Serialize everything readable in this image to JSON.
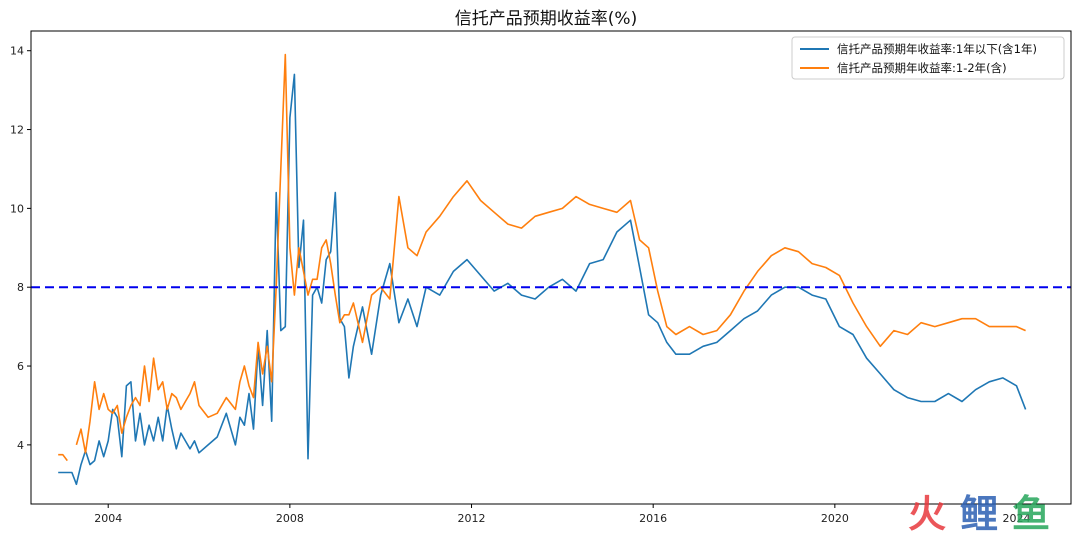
{
  "title": "信托产品预期收益率(%)",
  "watermark_text": "火鲤鱼",
  "colors": {
    "series_1": "#1f77b4",
    "series_2": "#ff7f0e",
    "reference_line": "#0000ee",
    "watermark_red": "#e8383d",
    "watermark_blue": "#2c5fb3",
    "watermark_green": "#26a65b"
  },
  "chart_data": {
    "type": "line",
    "title": "信托产品预期收益率(%)",
    "xlabel": "",
    "ylabel": "",
    "xlim": [
      2002.3,
      2025.2
    ],
    "ylim": [
      2.5,
      14.5
    ],
    "x_ticks": [
      2004,
      2008,
      2012,
      2016,
      2020,
      2024
    ],
    "x_tick_labels": [
      "2004",
      "2008",
      "2012",
      "2016",
      "2020",
      "2024"
    ],
    "y_ticks": [
      4,
      6,
      8,
      10,
      12,
      14
    ],
    "y_tick_labels": [
      "4",
      "6",
      "8",
      "10",
      "12",
      "14"
    ],
    "grid": false,
    "legend_position": "top-right",
    "reference_lines": [
      {
        "axis": "y",
        "value": 8,
        "style": "dashed"
      }
    ],
    "series": [
      {
        "name": "信托产品预期年收益率:1年以下(含1年)",
        "x": [
          2002.9,
          2003.0,
          2003.1,
          2003.2,
          2003.3,
          2003.4,
          2003.5,
          2003.6,
          2003.7,
          2003.8,
          2003.9,
          2004.0,
          2004.1,
          2004.2,
          2004.3,
          2004.4,
          2004.5,
          2004.6,
          2004.7,
          2004.8,
          2004.9,
          2005.0,
          2005.1,
          2005.2,
          2005.3,
          2005.4,
          2005.5,
          2005.6,
          2005.7,
          2005.8,
          2005.9,
          2006.0,
          2006.2,
          2006.4,
          2006.6,
          2006.8,
          2006.9,
          2007.0,
          2007.1,
          2007.2,
          2007.3,
          2007.4,
          2007.5,
          2007.6,
          2007.7,
          2007.8,
          2007.9,
          2008.0,
          2008.1,
          2008.2,
          2008.3,
          2008.4,
          2008.5,
          2008.6,
          2008.7,
          2008.8,
          2008.9,
          2009.0,
          2009.1,
          2009.2,
          2009.3,
          2009.4,
          2009.6,
          2009.8,
          2010.0,
          2010.2,
          2010.4,
          2010.6,
          2010.8,
          2011.0,
          2011.3,
          2011.6,
          2011.9,
          2012.2,
          2012.5,
          2012.8,
          2013.1,
          2013.4,
          2013.7,
          2014.0,
          2014.3,
          2014.6,
          2014.9,
          2015.2,
          2015.5,
          2015.7,
          2015.9,
          2016.1,
          2016.3,
          2016.5,
          2016.8,
          2017.1,
          2017.4,
          2017.7,
          2018.0,
          2018.3,
          2018.6,
          2018.9,
          2019.2,
          2019.5,
          2019.8,
          2020.1,
          2020.4,
          2020.7,
          2021.0,
          2021.3,
          2021.6,
          2021.9,
          2022.2,
          2022.5,
          2022.8,
          2023.1,
          2023.4,
          2023.7,
          2024.0,
          2024.2
        ],
        "values": [
          3.3,
          3.3,
          3.3,
          3.3,
          3.0,
          3.5,
          3.85,
          3.5,
          3.6,
          4.1,
          3.7,
          4.1,
          4.9,
          4.7,
          3.7,
          5.5,
          5.6,
          4.1,
          4.8,
          4.0,
          4.5,
          4.1,
          4.7,
          4.1,
          5.0,
          4.4,
          3.9,
          4.3,
          4.1,
          3.9,
          4.1,
          3.8,
          4.0,
          4.2,
          4.8,
          4.0,
          4.7,
          4.5,
          5.3,
          4.4,
          6.5,
          5.0,
          6.9,
          4.6,
          10.4,
          6.9,
          7.0,
          12.3,
          13.4,
          8.5,
          9.7,
          3.65,
          7.8,
          8.0,
          7.6,
          8.7,
          8.9,
          10.4,
          7.2,
          7.0,
          5.7,
          6.5,
          7.5,
          6.3,
          7.8,
          8.6,
          7.1,
          7.7,
          7.0,
          8.0,
          7.8,
          8.4,
          8.7,
          8.3,
          7.9,
          8.1,
          7.8,
          7.7,
          8.0,
          8.2,
          7.9,
          8.6,
          8.7,
          9.4,
          9.7,
          8.5,
          7.3,
          7.1,
          6.6,
          6.3,
          6.3,
          6.5,
          6.6,
          6.9,
          7.2,
          7.4,
          7.8,
          8.0,
          8.0,
          7.8,
          7.7,
          7.0,
          6.8,
          6.2,
          5.8,
          5.4,
          5.2,
          5.1,
          5.1,
          5.3,
          5.1,
          5.4,
          5.6,
          5.7,
          5.5,
          4.9
        ]
      },
      {
        "name": "信托产品预期年收益率:1-2年(含)",
        "x": [
          2002.9,
          2003.0,
          2003.1,
          2003.2,
          2003.3,
          2003.4,
          2003.5,
          2003.6,
          2003.7,
          2003.8,
          2003.9,
          2004.0,
          2004.1,
          2004.2,
          2004.3,
          2004.4,
          2004.5,
          2004.6,
          2004.7,
          2004.8,
          2004.9,
          2005.0,
          2005.1,
          2005.2,
          2005.3,
          2005.4,
          2005.5,
          2005.6,
          2005.7,
          2005.8,
          2005.9,
          2006.0,
          2006.2,
          2006.4,
          2006.6,
          2006.8,
          2006.9,
          2007.0,
          2007.1,
          2007.2,
          2007.3,
          2007.4,
          2007.5,
          2007.6,
          2007.7,
          2007.8,
          2007.9,
          2008.0,
          2008.1,
          2008.2,
          2008.3,
          2008.4,
          2008.5,
          2008.6,
          2008.7,
          2008.8,
          2008.9,
          2009.0,
          2009.1,
          2009.2,
          2009.3,
          2009.4,
          2009.6,
          2009.8,
          2010.0,
          2010.2,
          2010.4,
          2010.6,
          2010.8,
          2011.0,
          2011.3,
          2011.6,
          2011.9,
          2012.2,
          2012.5,
          2012.8,
          2013.1,
          2013.4,
          2013.7,
          2014.0,
          2014.3,
          2014.6,
          2014.9,
          2015.2,
          2015.5,
          2015.7,
          2015.9,
          2016.1,
          2016.3,
          2016.5,
          2016.8,
          2017.1,
          2017.4,
          2017.7,
          2018.0,
          2018.3,
          2018.6,
          2018.9,
          2019.2,
          2019.5,
          2019.8,
          2020.1,
          2020.4,
          2020.7,
          2021.0,
          2021.3,
          2021.6,
          2021.9,
          2022.2,
          2022.5,
          2022.8,
          2023.1,
          2023.4,
          2023.7,
          2024.0,
          2024.2
        ],
        "values": [
          3.75,
          3.75,
          3.6,
          null,
          4.0,
          4.4,
          3.8,
          4.6,
          5.6,
          4.9,
          5.3,
          4.9,
          4.8,
          5.0,
          4.3,
          4.7,
          5.0,
          5.2,
          5.0,
          6.0,
          5.1,
          6.2,
          5.4,
          5.6,
          4.9,
          5.3,
          5.2,
          4.9,
          5.1,
          5.3,
          5.6,
          5.0,
          4.7,
          4.8,
          5.2,
          4.9,
          5.6,
          6.0,
          5.5,
          5.2,
          6.6,
          5.8,
          6.5,
          5.6,
          8.0,
          11.0,
          13.9,
          9.0,
          7.8,
          9.0,
          8.4,
          7.8,
          8.2,
          8.2,
          9.0,
          9.2,
          8.6,
          7.8,
          7.1,
          7.3,
          7.3,
          7.6,
          6.6,
          7.8,
          8.0,
          7.7,
          10.3,
          9.0,
          8.8,
          9.4,
          9.8,
          10.3,
          10.7,
          10.2,
          9.9,
          9.6,
          9.5,
          9.8,
          9.9,
          10.0,
          10.3,
          10.1,
          10.0,
          9.9,
          10.2,
          9.2,
          9.0,
          7.9,
          7.0,
          6.8,
          7.0,
          6.8,
          6.9,
          7.3,
          7.9,
          8.4,
          8.8,
          9.0,
          8.9,
          8.6,
          8.5,
          8.3,
          7.6,
          7.0,
          6.5,
          6.9,
          6.8,
          7.1,
          7.0,
          7.1,
          7.2,
          7.2,
          7.0,
          7.0,
          7.0,
          6.9
        ]
      }
    ]
  }
}
